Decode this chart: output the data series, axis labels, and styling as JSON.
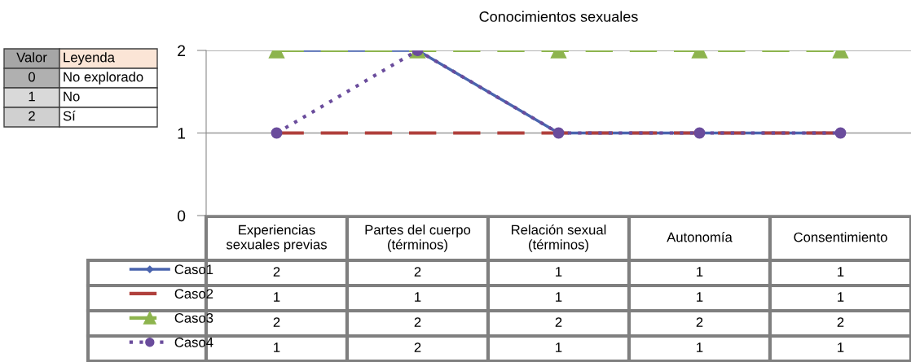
{
  "chart_data": {
    "type": "line",
    "title": "Conocimientos sexuales",
    "categories": [
      "Experiencias\nsexuales previas",
      "Partes del cuerpo\n(términos)",
      "Relación sexual\n(términos)",
      "Autonomía",
      "Consentimiento"
    ],
    "series": [
      {
        "name": "Caso1",
        "color": "#4a64ae",
        "values": [
          2,
          2,
          1,
          1,
          1
        ],
        "marker": "diamond",
        "line_style": "solid"
      },
      {
        "name": "Caso2",
        "color": "#b0403c",
        "values": [
          1,
          1,
          1,
          1,
          1
        ],
        "marker": "none",
        "line_style": "dashed"
      },
      {
        "name": "Caso3",
        "color": "#8db44e",
        "values": [
          2,
          2,
          2,
          2,
          2
        ],
        "marker": "triangle",
        "line_style": "dashed"
      },
      {
        "name": "Caso4",
        "color": "#6a4c9c",
        "values": [
          1,
          2,
          1,
          1,
          1
        ],
        "marker": "circle",
        "line_style": "dotted"
      }
    ],
    "ylim": [
      0,
      2
    ],
    "yticks": [
      0,
      1,
      2
    ],
    "grid": "y",
    "legend": "bottom",
    "data_labels": true,
    "annotations": [
      "Valor",
      "Leyenda",
      "0",
      "No explorado",
      "1",
      "No",
      "2",
      "Sí"
    ]
  }
}
